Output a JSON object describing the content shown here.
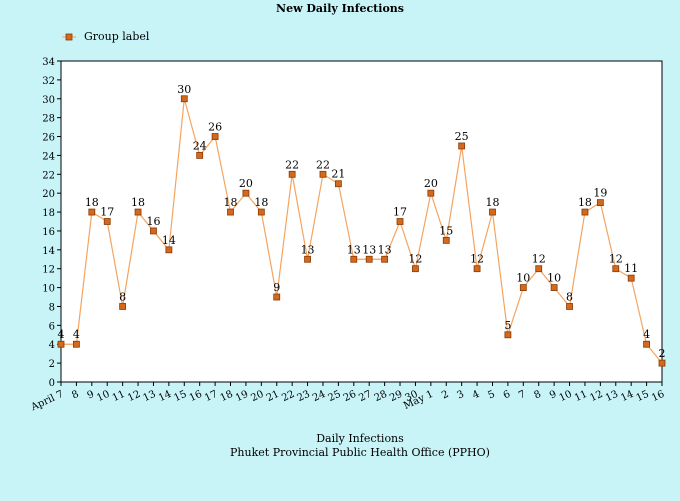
{
  "chart_data": {
    "type": "line",
    "title": "New Daily Infections",
    "xlabel": "Daily Infections",
    "subtitle": "Phuket Provincial Public Health Office (PPHO)",
    "ylabel": "",
    "ylim": [
      0,
      34
    ],
    "yticks": [
      0,
      2,
      4,
      6,
      8,
      10,
      12,
      14,
      16,
      18,
      20,
      22,
      24,
      26,
      28,
      30,
      32,
      34
    ],
    "grid": false,
    "legend_position": "top-left",
    "categories": [
      "April 7",
      "8",
      "9",
      "10",
      "11",
      "12",
      "13",
      "14",
      "15",
      "16",
      "17",
      "18",
      "19",
      "20",
      "21",
      "22",
      "23",
      "24",
      "25",
      "26",
      "27",
      "28",
      "29",
      "30",
      "May 1",
      "2",
      "3",
      "4",
      "5",
      "6",
      "7",
      "8",
      "9",
      "10",
      "11",
      "12",
      "13",
      "14",
      "15",
      "16"
    ],
    "series": [
      {
        "name": "Group label",
        "color": "#f4a460",
        "marker_color": "#d2691e",
        "values": [
          4,
          4,
          18,
          17,
          8,
          18,
          16,
          14,
          30,
          24,
          26,
          18,
          20,
          18,
          9,
          22,
          13,
          22,
          21,
          13,
          13,
          13,
          17,
          12,
          20,
          15,
          25,
          12,
          18,
          5,
          10,
          12,
          10,
          8,
          18,
          19,
          12,
          11,
          4,
          2
        ]
      }
    ]
  }
}
